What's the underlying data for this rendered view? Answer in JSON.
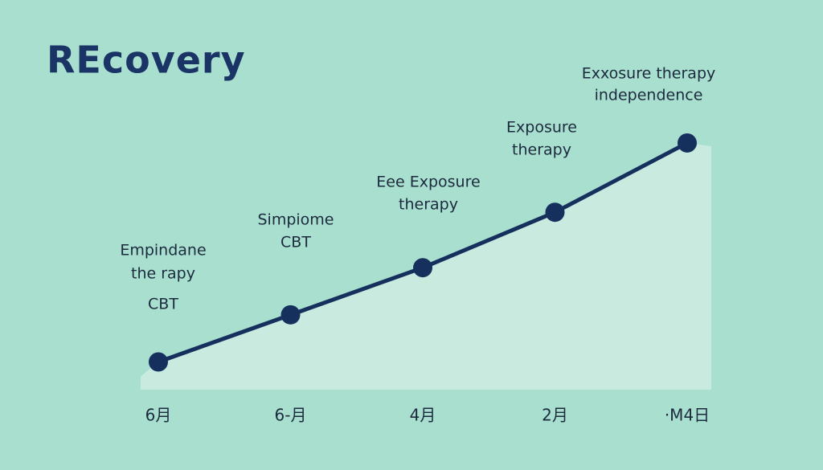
{
  "chart_data": {
    "type": "line",
    "title": "REcovery",
    "categories": [
      "6月",
      "6-月",
      "4月",
      "2月",
      "·M4日"
    ],
    "series": [
      {
        "color": "#16305e",
        "values": [
          10,
          27,
          44,
          64,
          89
        ]
      }
    ],
    "ylim": [
      0,
      100
    ],
    "annotations": [
      [
        "Empindane",
        "the rapy",
        "CBT"
      ],
      [
        "Simpiome",
        "CBT"
      ],
      [
        "Eee Exposure",
        "therapy"
      ],
      [
        "Exposure",
        "therapy"
      ],
      [
        "Exxosure therapy",
        "independence"
      ]
    ]
  }
}
